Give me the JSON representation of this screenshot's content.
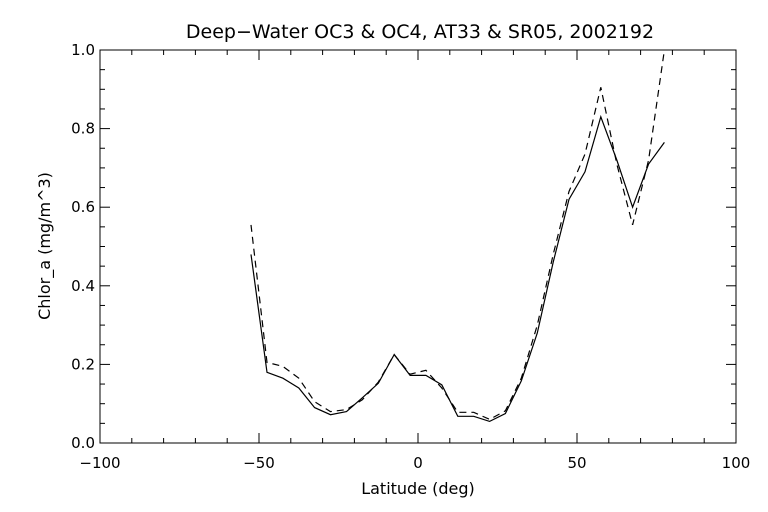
{
  "chart_data": {
    "type": "line",
    "title": "Deep−Water OC3 & OC4, AT33 & SR05, 2002192",
    "xlabel": "Latitude (deg)",
    "ylabel": "Chlor_a (mg/m^3)",
    "xlim": [
      -100,
      100
    ],
    "ylim": [
      0.0,
      1.0
    ],
    "x_ticks": [
      -100,
      -50,
      0,
      50,
      100
    ],
    "x_tick_labels": [
      "−100",
      "−50",
      "0",
      "50",
      "100"
    ],
    "y_ticks": [
      0.0,
      0.2,
      0.4,
      0.6,
      0.8,
      1.0
    ],
    "y_tick_labels": [
      "0.0",
      "0.2",
      "0.4",
      "0.6",
      "0.8",
      "1.0"
    ],
    "grid": false,
    "series": [
      {
        "style": "solid",
        "x": [
          -52.5,
          -47.5,
          -42.5,
          -37.5,
          -32.5,
          -27.5,
          -22.5,
          -17.5,
          -12.5,
          -7.5,
          -2.5,
          2.5,
          7.5,
          12.5,
          17.5,
          22.5,
          27.5,
          32.5,
          37.5,
          42.5,
          47.5,
          52.5,
          57.5,
          62.5,
          67.5,
          72.5,
          77.5
        ],
        "y": [
          0.48,
          0.18,
          0.165,
          0.14,
          0.09,
          0.072,
          0.08,
          0.115,
          0.152,
          0.225,
          0.172,
          0.172,
          0.148,
          0.068,
          0.068,
          0.055,
          0.075,
          0.158,
          0.28,
          0.46,
          0.62,
          0.69,
          0.83,
          0.72,
          0.6,
          0.71,
          0.765
        ]
      },
      {
        "style": "dashed",
        "x": [
          -52.5,
          -47.5,
          -42.5,
          -37.5,
          -32.5,
          -27.5,
          -22.5,
          -17.5,
          -12.5,
          -7.5,
          -2.5,
          2.5,
          7.5,
          12.5,
          17.5,
          22.5,
          27.5,
          32.5,
          37.5,
          42.5,
          47.5,
          52.5,
          57.5,
          62.5,
          67.5,
          72.5,
          77.5
        ],
        "y": [
          0.555,
          0.205,
          0.195,
          0.165,
          0.105,
          0.08,
          0.085,
          0.11,
          0.155,
          0.225,
          0.175,
          0.185,
          0.14,
          0.078,
          0.078,
          0.06,
          0.082,
          0.165,
          0.3,
          0.48,
          0.64,
          0.735,
          0.905,
          0.71,
          0.555,
          0.72,
          1.0
        ]
      }
    ]
  }
}
